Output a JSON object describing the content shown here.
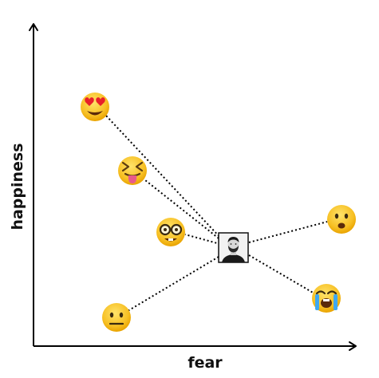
{
  "axes": {
    "x_label": "fear",
    "y_label": "happiness"
  },
  "center": {
    "name": "person-photo-icon",
    "description_icon": "portrait-photo"
  },
  "emojis": [
    {
      "name": "heart-eyes-emoji",
      "icon": "heart-eyes"
    },
    {
      "name": "squinting-tongue-emoji",
      "icon": "squinting-tongue"
    },
    {
      "name": "nerd-face-emoji",
      "icon": "nerd-face"
    },
    {
      "name": "frowning-face-emoji",
      "icon": "frowning-open-mouth"
    },
    {
      "name": "crying-face-emoji",
      "icon": "loudly-crying"
    },
    {
      "name": "neutral-face-emoji",
      "icon": "neutral-face"
    }
  ],
  "colors": {
    "emoji_yellow": "#f7c024",
    "emoji_shade": "#e9a300",
    "heart_red": "#e8202a",
    "tear_blue": "#3fa8f0"
  }
}
